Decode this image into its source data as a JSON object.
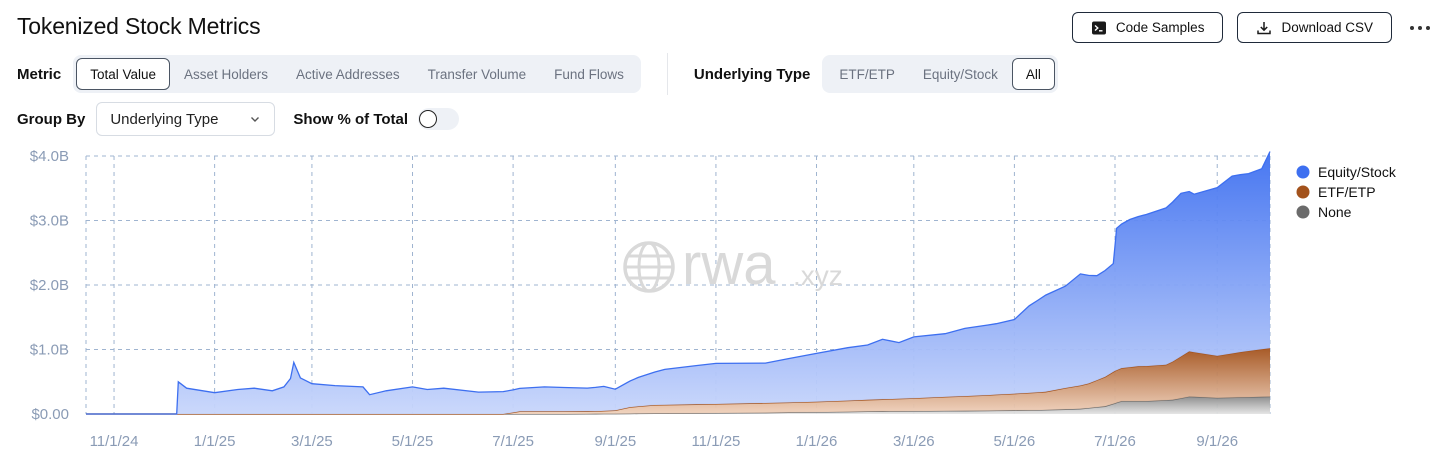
{
  "header": {
    "title": "Tokenized Stock Metrics"
  },
  "actions": {
    "code_samples": "Code Samples",
    "download_csv": "Download CSV"
  },
  "metric": {
    "label": "Metric",
    "options": [
      "Total Value",
      "Asset Holders",
      "Active Addresses",
      "Transfer Volume",
      "Fund Flows"
    ],
    "selected": "Total Value"
  },
  "underlying": {
    "label": "Underlying Type",
    "options": [
      "ETF/ETP",
      "Equity/Stock",
      "All"
    ],
    "selected": "All"
  },
  "group_by": {
    "label": "Group By",
    "value": "Underlying Type"
  },
  "show_pct": {
    "label": "Show % of Total",
    "on": false
  },
  "watermark": {
    "main": "rwa",
    "sub": ".xyz"
  },
  "colors": {
    "equity": "#3d6ff0",
    "etf": "#a3521c",
    "none": "#6b6b6b",
    "grid": "#9fb4d0",
    "accent": "#1f2a3a"
  },
  "chart_data": {
    "type": "area",
    "stacked": true,
    "y_tick_labels": [
      "$0.00",
      "$1.0B",
      "$2.0B",
      "$3.0B",
      "$4.0B"
    ],
    "ylim": [
      0,
      4.0
    ],
    "yunit": "billions USD",
    "xlim": [
      "2024-10-15",
      "2026-10-03"
    ],
    "x_ticks": [
      {
        "date": "2024-11-01",
        "label": "11/1/24"
      },
      {
        "date": "2025-01-01",
        "label": "1/1/25"
      },
      {
        "date": "2025-03-01",
        "label": "3/1/25"
      },
      {
        "date": "2025-05-01",
        "label": "5/1/25"
      },
      {
        "date": "2025-07-01",
        "label": "7/1/25"
      },
      {
        "date": "2025-09-01",
        "label": "9/1/25"
      },
      {
        "date": "2025-11-01",
        "label": "11/1/25"
      },
      {
        "date": "2026-01-01",
        "label": "1/1/26"
      },
      {
        "date": "2026-03-01",
        "label": "3/1/26"
      },
      {
        "date": "2026-05-01",
        "label": "5/1/26"
      },
      {
        "date": "2026-07-01",
        "label": "7/1/26"
      },
      {
        "date": "2026-09-01",
        "label": "9/1/26"
      }
    ],
    "grid": true,
    "legend_position": "right",
    "series": [
      {
        "name": "None",
        "color": "#6b6b6b",
        "points": [
          [
            "2024-10-15",
            0
          ],
          [
            "2025-08-01",
            0
          ],
          [
            "2025-10-01",
            0.01
          ],
          [
            "2025-12-01",
            0.02
          ],
          [
            "2026-02-01",
            0.04
          ],
          [
            "2026-04-01",
            0.05
          ],
          [
            "2026-05-15",
            0.06
          ],
          [
            "2026-06-10",
            0.08
          ],
          [
            "2026-06-25",
            0.12
          ],
          [
            "2026-07-05",
            0.2
          ],
          [
            "2026-07-20",
            0.2
          ],
          [
            "2026-08-05",
            0.22
          ],
          [
            "2026-08-15",
            0.27
          ],
          [
            "2026-09-01",
            0.25
          ],
          [
            "2026-09-15",
            0.26
          ],
          [
            "2026-10-03",
            0.27
          ]
        ]
      },
      {
        "name": "ETF/ETP",
        "color": "#a3521c",
        "points": [
          [
            "2024-10-15",
            0
          ],
          [
            "2025-06-25",
            0
          ],
          [
            "2025-07-05",
            0.04
          ],
          [
            "2025-08-20",
            0.04
          ],
          [
            "2025-09-01",
            0.05
          ],
          [
            "2025-09-10",
            0.1
          ],
          [
            "2025-09-25",
            0.13
          ],
          [
            "2025-11-01",
            0.14
          ],
          [
            "2026-01-01",
            0.16
          ],
          [
            "2026-02-01",
            0.18
          ],
          [
            "2026-03-01",
            0.2
          ],
          [
            "2026-04-15",
            0.24
          ],
          [
            "2026-05-20",
            0.28
          ],
          [
            "2026-06-01",
            0.33
          ],
          [
            "2026-06-15",
            0.38
          ],
          [
            "2026-07-01",
            0.5
          ],
          [
            "2026-07-15",
            0.54
          ],
          [
            "2026-08-01",
            0.55
          ],
          [
            "2026-08-15",
            0.7
          ],
          [
            "2026-09-01",
            0.65
          ],
          [
            "2026-09-15",
            0.7
          ],
          [
            "2026-10-03",
            0.75
          ]
        ]
      },
      {
        "name": "Equity/Stock",
        "color": "#3d6ff0",
        "points": [
          [
            "2024-10-15",
            0
          ],
          [
            "2024-12-09",
            0
          ],
          [
            "2024-12-10",
            0.5
          ],
          [
            "2024-12-15",
            0.4
          ],
          [
            "2025-01-01",
            0.33
          ],
          [
            "2025-01-15",
            0.38
          ],
          [
            "2025-01-25",
            0.4
          ],
          [
            "2025-02-05",
            0.36
          ],
          [
            "2025-02-12",
            0.42
          ],
          [
            "2025-02-16",
            0.55
          ],
          [
            "2025-02-18",
            0.8
          ],
          [
            "2025-02-22",
            0.56
          ],
          [
            "2025-03-01",
            0.47
          ],
          [
            "2025-03-15",
            0.44
          ],
          [
            "2025-04-01",
            0.42
          ],
          [
            "2025-04-05",
            0.3
          ],
          [
            "2025-04-15",
            0.36
          ],
          [
            "2025-05-01",
            0.42
          ],
          [
            "2025-05-10",
            0.38
          ],
          [
            "2025-05-20",
            0.4
          ],
          [
            "2025-06-10",
            0.34
          ],
          [
            "2025-07-01",
            0.35
          ],
          [
            "2025-07-20",
            0.38
          ],
          [
            "2025-08-15",
            0.36
          ],
          [
            "2025-08-25",
            0.38
          ],
          [
            "2025-09-01",
            0.33
          ],
          [
            "2025-09-15",
            0.45
          ],
          [
            "2025-10-01",
            0.55
          ],
          [
            "2025-10-20",
            0.6
          ],
          [
            "2025-11-01",
            0.63
          ],
          [
            "2025-12-01",
            0.62
          ],
          [
            "2025-12-15",
            0.68
          ],
          [
            "2026-01-01",
            0.75
          ],
          [
            "2026-01-20",
            0.82
          ],
          [
            "2026-02-01",
            0.85
          ],
          [
            "2026-02-10",
            0.93
          ],
          [
            "2026-02-20",
            0.87
          ],
          [
            "2026-03-01",
            0.95
          ],
          [
            "2026-03-20",
            0.98
          ],
          [
            "2026-04-01",
            1.05
          ],
          [
            "2026-04-20",
            1.1
          ],
          [
            "2026-05-01",
            1.15
          ],
          [
            "2026-05-10",
            1.35
          ],
          [
            "2026-05-20",
            1.5
          ],
          [
            "2026-06-01",
            1.58
          ],
          [
            "2026-06-10",
            1.73
          ],
          [
            "2026-06-20",
            1.62
          ],
          [
            "2026-06-30",
            1.68
          ],
          [
            "2026-07-02",
            2.2
          ],
          [
            "2026-07-10",
            2.29
          ],
          [
            "2026-07-20",
            2.35
          ],
          [
            "2026-08-01",
            2.43
          ],
          [
            "2026-08-10",
            2.53
          ],
          [
            "2026-08-18",
            2.45
          ],
          [
            "2026-09-01",
            2.61
          ],
          [
            "2026-09-10",
            2.75
          ],
          [
            "2026-09-20",
            2.75
          ],
          [
            "2026-09-28",
            2.8
          ],
          [
            "2026-10-03",
            3.05
          ]
        ]
      }
    ],
    "legend_order": [
      "Equity/Stock",
      "ETF/ETP",
      "None"
    ]
  }
}
